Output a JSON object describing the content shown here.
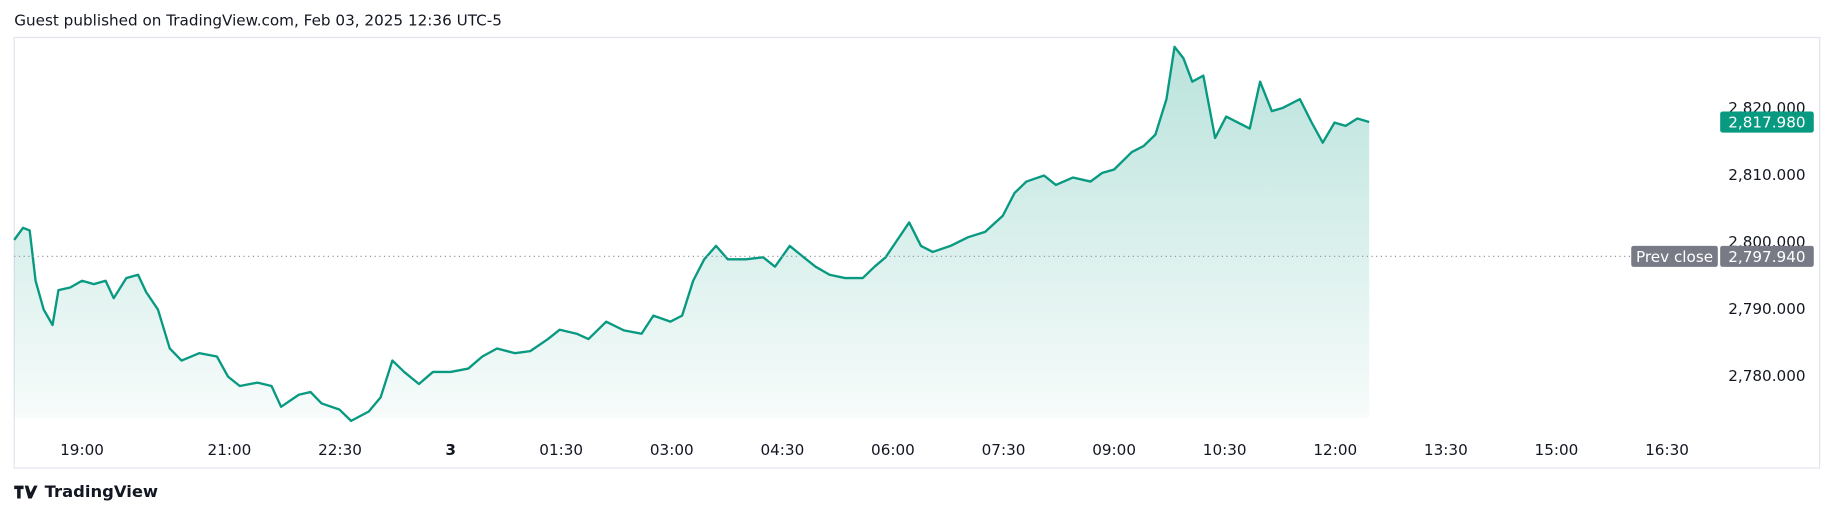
{
  "header": "Guest published on TradingView.com, Feb 03, 2025 12:36 UTC-5",
  "footer": "TradingView",
  "chart_data": {
    "type": "area",
    "color": "#089981",
    "x": [
      -5.92,
      -5.8,
      -5.71,
      -5.63,
      -5.52,
      -5.4,
      -5.32,
      -5.16,
      -5,
      -4.84,
      -4.68,
      -4.57,
      -4.4,
      -4.24,
      -4.13,
      -3.97,
      -3.81,
      -3.65,
      -3.41,
      -3.17,
      -3.02,
      -2.86,
      -2.62,
      -2.43,
      -2.3,
      -2.06,
      -1.9,
      -1.75,
      -1.51,
      -1.35,
      -1.11,
      -0.95,
      -0.79,
      -0.63,
      -0.43,
      -0.24,
      0,
      0.24,
      0.43,
      0.63,
      0.87,
      1.08,
      1.32,
      1.48,
      1.71,
      1.87,
      2.11,
      2.35,
      2.59,
      2.75,
      2.98,
      3.14,
      3.29,
      3.44,
      3.6,
      3.76,
      4,
      4.24,
      4.4,
      4.6,
      4.79,
      4.95,
      5.14,
      5.35,
      5.59,
      5.75,
      5.9,
      6.06,
      6.22,
      6.38,
      6.54,
      6.78,
      7.02,
      7.25,
      7.49,
      7.65,
      7.81,
      8.05,
      8.21,
      8.44,
      8.68,
      8.84,
      9,
      9.24,
      9.4,
      9.56,
      9.71,
      9.82,
      9.94,
      10.06,
      10.21,
      10.37,
      10.52,
      10.68,
      10.84,
      10.98,
      11.14,
      11.29,
      11.52,
      11.68,
      11.83,
      11.99,
      12.14,
      12.3,
      12.46
    ],
    "values": [
      2800.4,
      2802.2,
      2801.8,
      2794.3,
      2790,
      2787.7,
      2792.9,
      2793.3,
      2794.3,
      2793.8,
      2794.3,
      2791.7,
      2794.7,
      2795.2,
      2792.6,
      2790,
      2784.2,
      2782.4,
      2783.5,
      2783,
      2780,
      2778.6,
      2779.1,
      2778.6,
      2775.5,
      2777.3,
      2777.7,
      2776,
      2775.1,
      2773.4,
      2774.8,
      2776.9,
      2782.4,
      2780.7,
      2778.9,
      2780.7,
      2780.7,
      2781.2,
      2783,
      2784.2,
      2783.5,
      2783.8,
      2785.6,
      2787,
      2786.4,
      2785.6,
      2788.2,
      2786.9,
      2786.4,
      2789.1,
      2788.2,
      2789.1,
      2794.3,
      2797.5,
      2799.5,
      2797.5,
      2797.5,
      2797.8,
      2796.4,
      2799.5,
      2797.8,
      2796.4,
      2795.2,
      2794.7,
      2794.7,
      2796.4,
      2797.8,
      2800.4,
      2803,
      2799.5,
      2798.6,
      2799.5,
      2800.8,
      2801.6,
      2804,
      2807.4,
      2809.1,
      2810,
      2808.6,
      2809.7,
      2809.1,
      2810.4,
      2810.9,
      2813.5,
      2814.4,
      2816.1,
      2821.4,
      2829.2,
      2827.5,
      2824,
      2824.9,
      2815.6,
      2818.8,
      2817.9,
      2817,
      2824,
      2819.6,
      2820.1,
      2821.4,
      2817.9,
      2814.9,
      2817.9,
      2817.4,
      2818.5,
      2817.98
    ],
    "xlim": [
      -5.92,
      18.57
    ],
    "ylim": [
      2771.6,
      2830.6
    ],
    "xticks": [
      {
        "value": -5,
        "label": "19:00"
      },
      {
        "value": -3,
        "label": "21:00"
      },
      {
        "value": -1.5,
        "label": "22:30"
      },
      {
        "value": 0,
        "label": "3"
      },
      {
        "value": 1.5,
        "label": "01:30"
      },
      {
        "value": 3,
        "label": "03:00"
      },
      {
        "value": 4.5,
        "label": "04:30"
      },
      {
        "value": 6,
        "label": "06:00"
      },
      {
        "value": 7.5,
        "label": "07:30"
      },
      {
        "value": 9,
        "label": "09:00"
      },
      {
        "value": 10.5,
        "label": "10:30"
      },
      {
        "value": 12,
        "label": "12:00"
      },
      {
        "value": 13.5,
        "label": "13:30"
      },
      {
        "value": 15,
        "label": "15:00"
      },
      {
        "value": 16.5,
        "label": "16:30"
      }
    ],
    "yticks": [
      {
        "value": 2780,
        "label": "2,780.000"
      },
      {
        "value": 2790,
        "label": "2,790.000"
      },
      {
        "value": 2800,
        "label": "2,800.000"
      },
      {
        "value": 2810,
        "label": "2,810.000"
      },
      {
        "value": 2820,
        "label": "2,820.000"
      }
    ],
    "last_price": {
      "value": 2817.98,
      "label": "2,817.980"
    },
    "prev_close": {
      "name": "Prev close",
      "value": 2797.94,
      "label": "2,797.940"
    }
  }
}
